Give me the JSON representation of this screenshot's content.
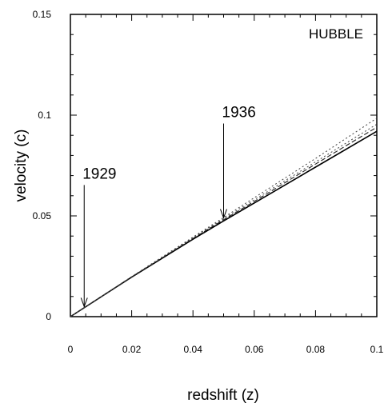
{
  "chart_data": {
    "type": "line",
    "title": "",
    "panel_label": "HUBBLE",
    "xlabel": "redshift (z)",
    "ylabel": "velocity (c)",
    "xlim": [
      0,
      0.1
    ],
    "ylim": [
      0,
      0.15
    ],
    "x_ticks": [
      0,
      0.02,
      0.04,
      0.06,
      0.08,
      0.1
    ],
    "x_tick_labels": [
      "0",
      "0.02",
      "0.04",
      "0.06",
      "0.08",
      "0.1"
    ],
    "y_ticks": [
      0,
      0.05,
      0.1,
      0.15
    ],
    "y_tick_labels": [
      "0",
      "0.05",
      "0.1",
      "0.15"
    ],
    "grid": false,
    "series": [
      {
        "style": "solid",
        "x": [
          0,
          0.02,
          0.04,
          0.05,
          0.06,
          0.08,
          0.1
        ],
        "y": [
          0,
          0.0196,
          0.0384,
          0.0475,
          0.0564,
          0.0742,
          0.092
        ]
      },
      {
        "style": "dash",
        "x": [
          0,
          0.02,
          0.04,
          0.05,
          0.06,
          0.08,
          0.1
        ],
        "y": [
          0,
          0.0197,
          0.0388,
          0.0481,
          0.0572,
          0.0757,
          0.094
        ]
      },
      {
        "style": "dot",
        "x": [
          0,
          0.02,
          0.04,
          0.05,
          0.06,
          0.08,
          0.1
        ],
        "y": [
          0,
          0.0198,
          0.0391,
          0.0486,
          0.058,
          0.0768,
          0.0955
        ]
      },
      {
        "style": "dot",
        "x": [
          0,
          0.02,
          0.04,
          0.05,
          0.06,
          0.08,
          0.1
        ],
        "y": [
          0,
          0.0199,
          0.0395,
          0.0492,
          0.059,
          0.0785,
          0.0985
        ]
      }
    ],
    "annotations": [
      {
        "text": "1929",
        "x": 0.0045,
        "y": 0.005
      },
      {
        "text": "1936",
        "x": 0.05,
        "y": 0.049
      }
    ]
  }
}
